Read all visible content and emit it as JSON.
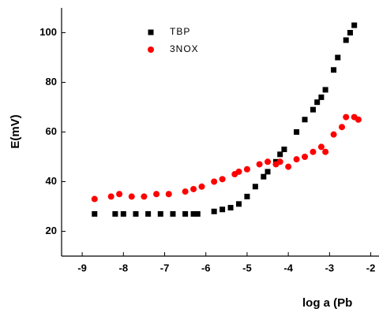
{
  "chart_data": {
    "type": "scatter",
    "xlabel": "log a (Pb",
    "ylabel": "E(mV)",
    "xlim": [
      -9.5,
      -1.8
    ],
    "ylim": [
      10,
      110
    ],
    "xticks": [
      -9,
      -8,
      -7,
      -6,
      -5,
      -4,
      -3,
      -2
    ],
    "yticks": [
      20,
      40,
      60,
      80,
      100
    ],
    "series": [
      {
        "name": "TBP",
        "color": "#000000",
        "marker": "square",
        "x": [
          -8.7,
          -8.2,
          -8.0,
          -7.7,
          -7.4,
          -7.1,
          -6.8,
          -6.5,
          -6.3,
          -6.2,
          -5.8,
          -5.6,
          -5.4,
          -5.2,
          -5.0,
          -4.8,
          -4.6,
          -4.5,
          -4.3,
          -4.2,
          -4.1,
          -3.8,
          -3.6,
          -3.4,
          -3.3,
          -3.2,
          -3.1,
          -2.9,
          -2.8,
          -2.6,
          -2.5,
          -2.4
        ],
        "values": [
          27,
          27,
          27,
          27,
          27,
          27,
          27,
          27,
          27,
          27,
          28,
          28.8,
          29.5,
          31,
          34,
          38,
          42,
          44,
          48,
          51,
          53,
          60,
          65,
          69,
          72,
          74,
          77,
          85,
          90,
          97,
          100,
          103
        ]
      },
      {
        "name": "3NOX",
        "color": "#ff0000",
        "marker": "circle",
        "x": [
          -8.7,
          -8.3,
          -8.1,
          -7.8,
          -7.5,
          -7.2,
          -6.9,
          -6.5,
          -6.3,
          -6.1,
          -5.8,
          -5.6,
          -5.3,
          -5.2,
          -5.0,
          -4.7,
          -4.5,
          -4.3,
          -4.2,
          -4.0,
          -3.8,
          -3.6,
          -3.4,
          -3.2,
          -3.1,
          -2.9,
          -2.7,
          -2.6,
          -2.4,
          -2.3
        ],
        "values": [
          33,
          34,
          35,
          34,
          34,
          35,
          35,
          36,
          37,
          38,
          40,
          41,
          43,
          44,
          45,
          47,
          48,
          47,
          48,
          46,
          49,
          50,
          52,
          54,
          52,
          59,
          62,
          66,
          66,
          65
        ]
      }
    ]
  }
}
